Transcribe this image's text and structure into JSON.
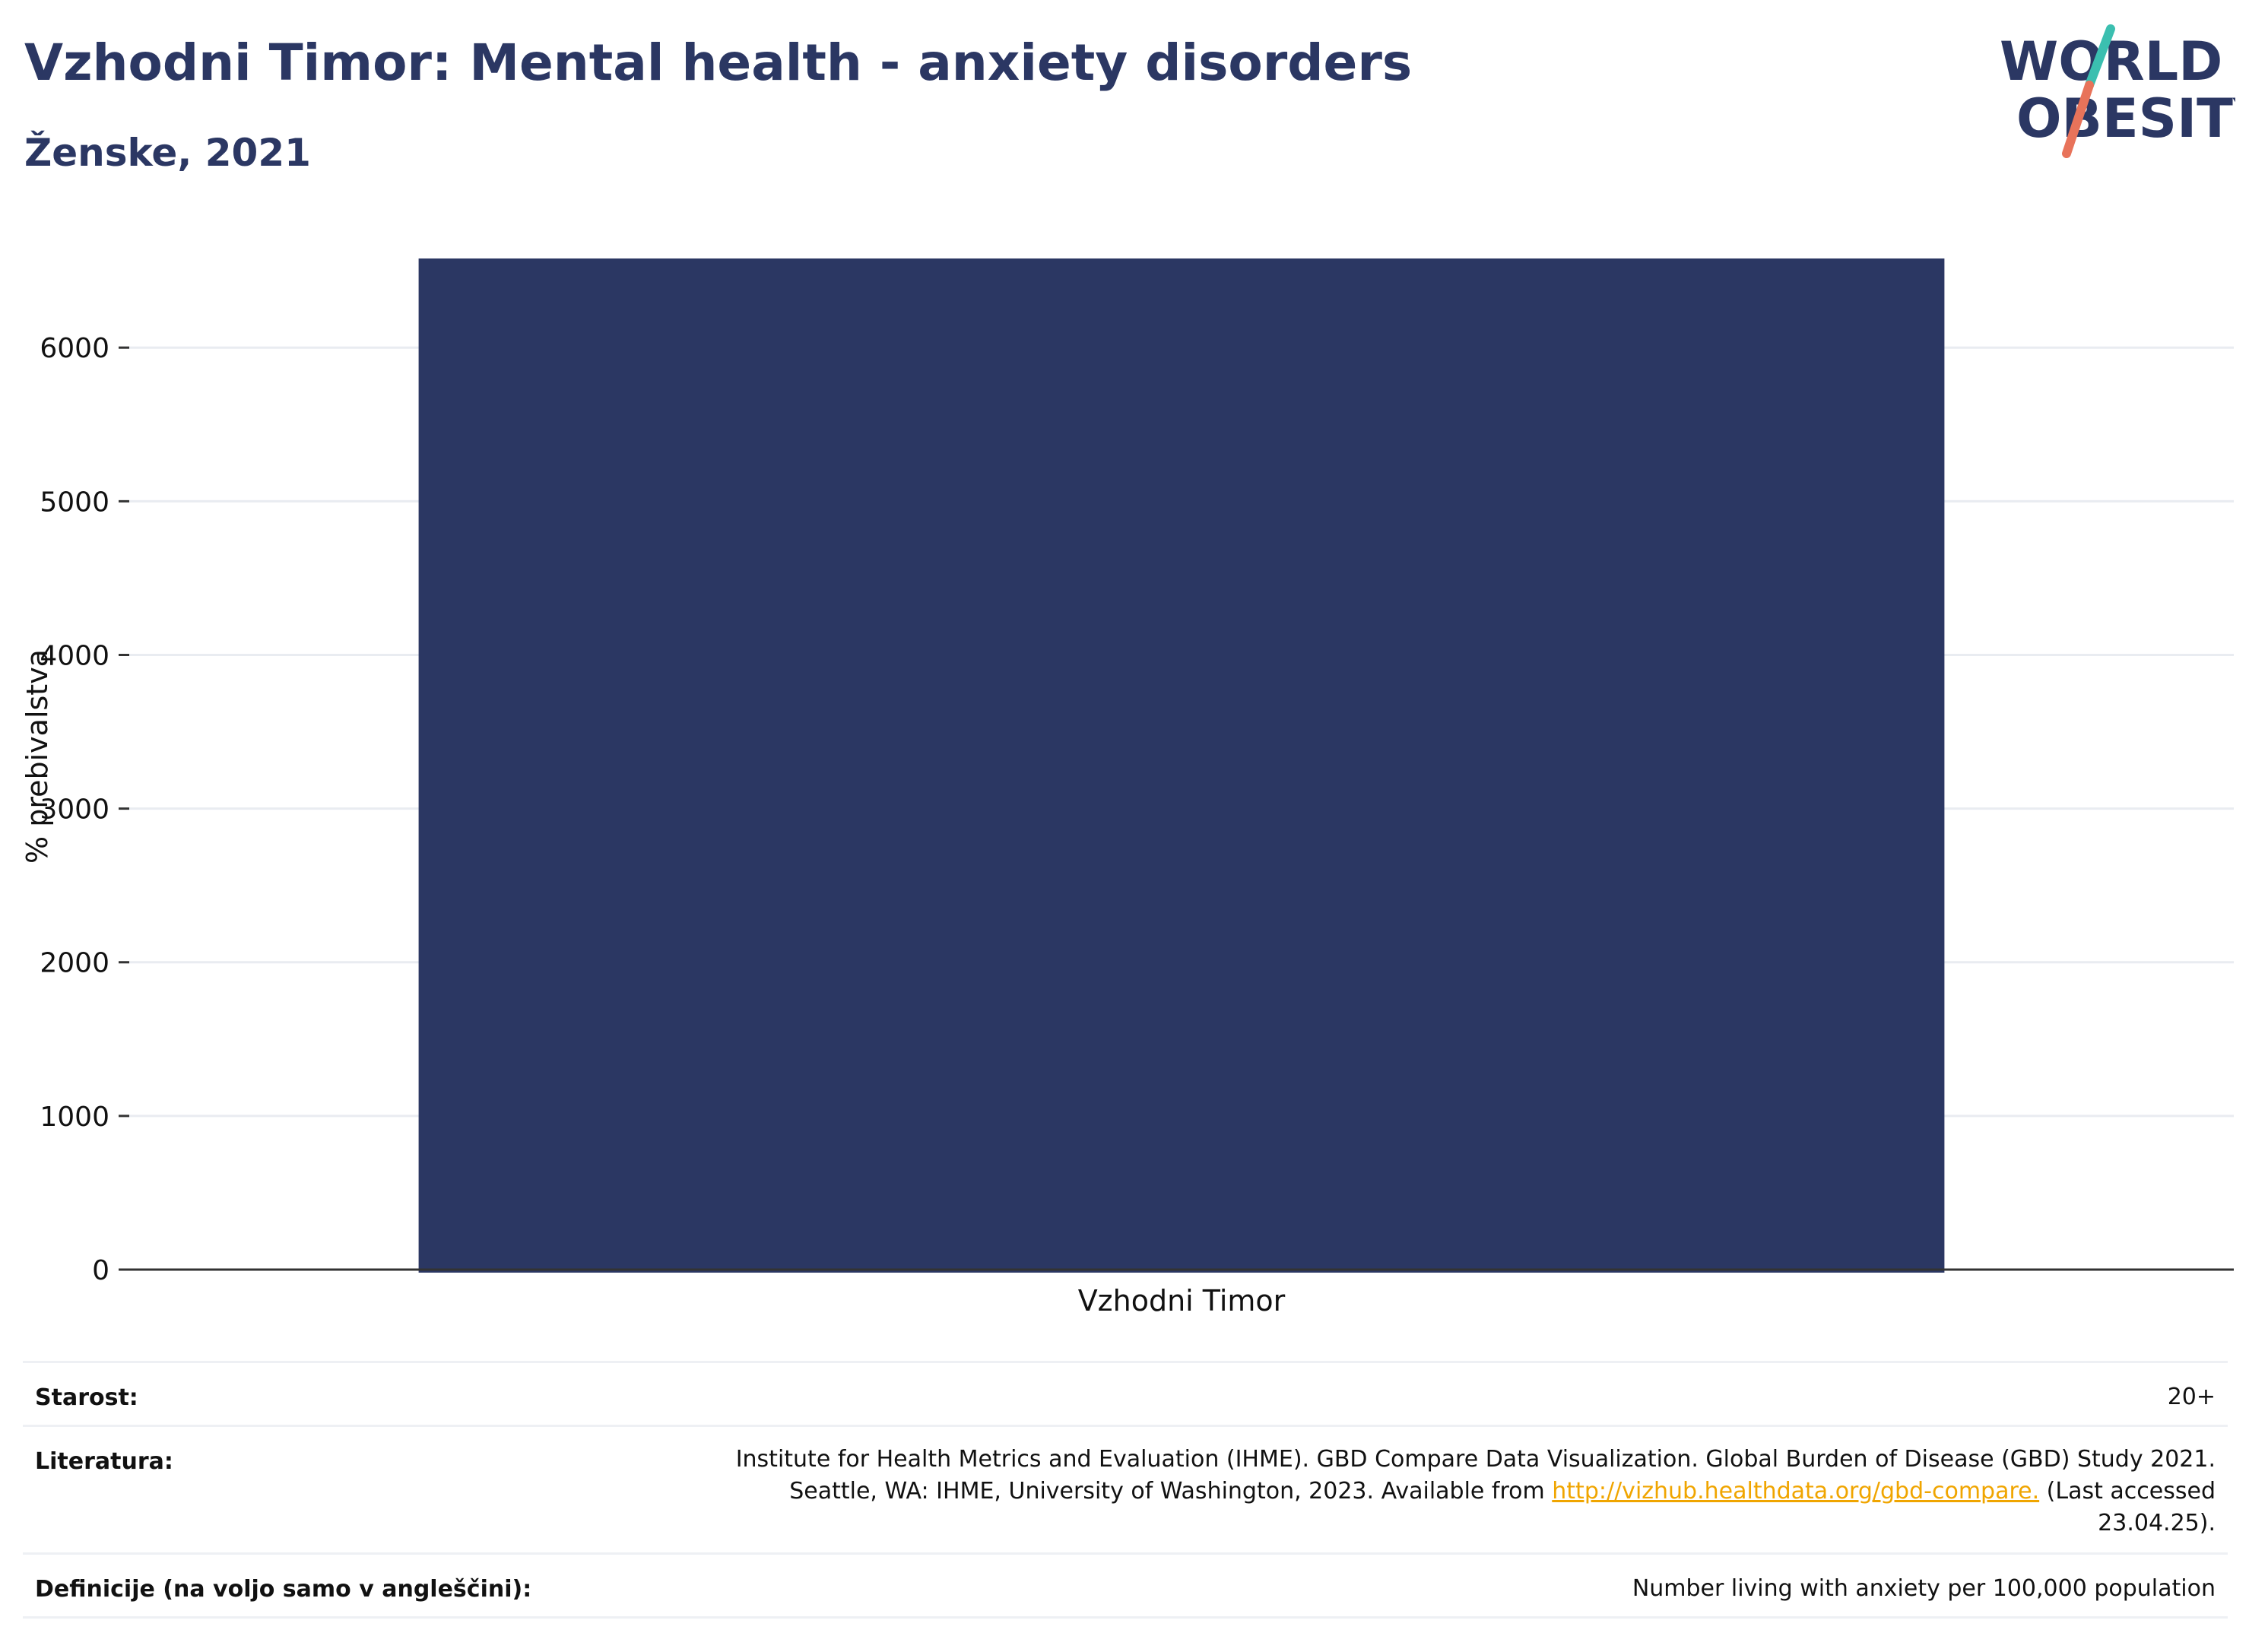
{
  "header": {
    "title": "Vzhodni Timor: Mental health - anxiety disorders",
    "subtitle": "Ženske, 2021"
  },
  "logo": {
    "line1": "WORLD",
    "line2": "OBESITY",
    "colors": {
      "text": "#2b3763",
      "slash_top": "#3bbfb0",
      "slash_bottom": "#e8735a"
    }
  },
  "chart_data": {
    "type": "bar",
    "categories": [
      "Vzhodni Timor"
    ],
    "values": [
      6580
    ],
    "title": "",
    "xlabel": "",
    "ylabel": "% prebivalstva",
    "ylim": [
      0,
      6580
    ],
    "yticks": [
      0,
      1000,
      2000,
      3000,
      4000,
      5000,
      6000
    ],
    "grid": true,
    "bar_color": "#2b3763"
  },
  "meta": {
    "age_label": "Starost:",
    "age_value": "20+",
    "source_label": "Literatura:",
    "source_line1": "Institute for Health Metrics and Evaluation (IHME). GBD Compare Data Visualization. Global Burden of Disease (GBD) Study 2021.",
    "source_line2_pre": "Seattle, WA: IHME, University of Washington, 2023. Available from ",
    "source_link": "http://vizhub.healthdata.org/gbd-compare.",
    "source_line2_post": " (Last accessed",
    "source_line3": "23.04.25).",
    "definition_label": "Definicije (na voljo samo v angleščini):",
    "definition_value": "Number living with anxiety per 100,000 population"
  }
}
